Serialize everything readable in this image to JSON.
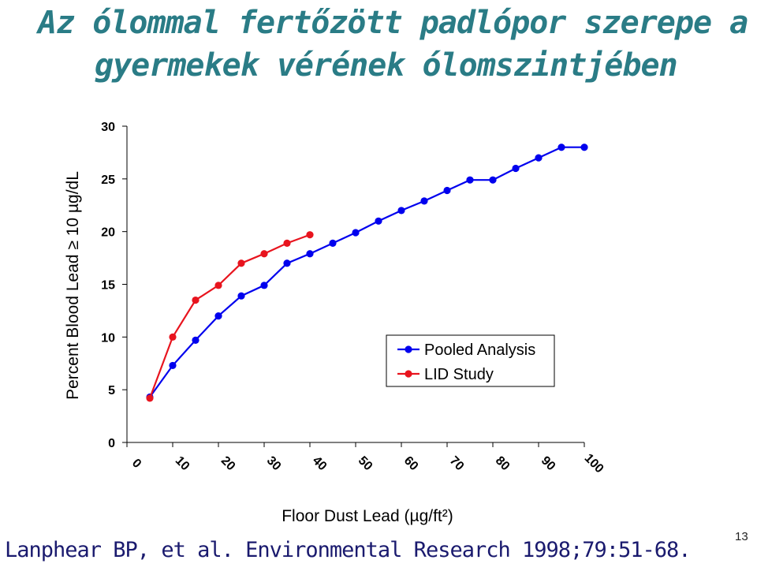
{
  "slide": {
    "title_line1": "Az ólommal fertőzött padlópor szerepe a",
    "title_line2": "gyermekek vérének ólomszintjében",
    "citation": "Lanphear BP, et al. Environmental Research 1998;79:51-68.",
    "slide_number": "13"
  },
  "chart_data": {
    "type": "line",
    "title": "",
    "xlabel": "Floor Dust Lead (µg/ft²)",
    "ylabel": "Percent Blood Lead ≥ 10 µg/dL",
    "xlim": [
      0,
      100
    ],
    "ylim": [
      0,
      30
    ],
    "x_ticks": [
      "0",
      "10",
      "20",
      "30",
      "40",
      "50",
      "60",
      "70",
      "80",
      "90",
      "100"
    ],
    "y_ticks": [
      "0",
      "5",
      "10",
      "15",
      "20",
      "25",
      "30"
    ],
    "grid": false,
    "legend_position": "center-right",
    "series": [
      {
        "name": "Pooled Analysis",
        "color": "#0000ee",
        "x": [
          5,
          10,
          15,
          20,
          25,
          30,
          35,
          40,
          45,
          50,
          55,
          60,
          65,
          70,
          75,
          80,
          85,
          90,
          95,
          100
        ],
        "y": [
          4.3,
          7.3,
          9.7,
          12.0,
          13.9,
          14.9,
          17.0,
          17.9,
          18.9,
          19.9,
          21.0,
          22.0,
          22.9,
          23.9,
          24.9,
          24.9,
          26.0,
          27.0,
          28.0,
          28.0
        ]
      },
      {
        "name": "LID Study",
        "color": "#e8141e",
        "x": [
          5,
          10,
          15,
          20,
          25,
          30,
          35,
          40
        ],
        "y": [
          4.2,
          10.0,
          13.5,
          14.9,
          17.0,
          17.9,
          18.9,
          19.7
        ]
      }
    ]
  }
}
